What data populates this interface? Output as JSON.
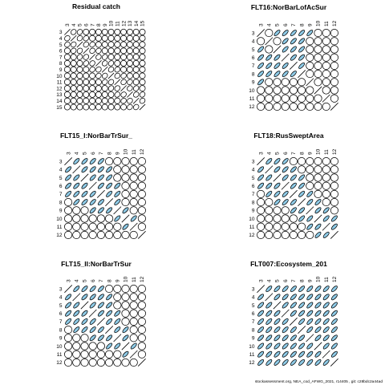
{
  "footer_text": "stockassessment.org, NEA_cod_AFWG_2021, r14405 , git: c28bdc2a44ad",
  "colors": {
    "positive": "#8ecae6",
    "negative": "#ffffff",
    "stroke": "#000000"
  },
  "chart_data": [
    {
      "type": "ellipse-correlation-matrix",
      "title": "Residual catch",
      "labels": [
        "3",
        "4",
        "5",
        "6",
        "7",
        "8",
        "9",
        "10",
        "11",
        "12",
        "13",
        "14",
        "15"
      ],
      "shaded": []
    },
    {
      "type": "ellipse-correlation-matrix",
      "title": "FLT16:NorBarLofAcSur",
      "labels": [
        "3",
        "4",
        "5",
        "6",
        "7",
        "8",
        "9",
        "10",
        "11",
        "12"
      ],
      "shaded": [
        [
          0,
          2
        ],
        [
          0,
          3
        ],
        [
          0,
          4
        ],
        [
          0,
          5
        ],
        [
          0,
          6
        ],
        [
          1,
          3
        ],
        [
          1,
          4
        ],
        [
          1,
          5
        ],
        [
          2,
          3
        ],
        [
          2,
          4
        ],
        [
          2,
          5
        ],
        [
          3,
          4
        ],
        [
          3,
          5
        ],
        [
          4,
          5
        ]
      ]
    },
    {
      "type": "ellipse-correlation-matrix",
      "title": "FLT15_I:NorBarTrSur_",
      "labels": [
        "3",
        "4",
        "5",
        "6",
        "7",
        "8",
        "9",
        "10",
        "11",
        "12"
      ],
      "shaded": [
        [
          0,
          1
        ],
        [
          0,
          2
        ],
        [
          0,
          3
        ],
        [
          0,
          4
        ],
        [
          1,
          2
        ],
        [
          1,
          3
        ],
        [
          1,
          4
        ],
        [
          1,
          5
        ],
        [
          2,
          3
        ],
        [
          2,
          4
        ],
        [
          2,
          5
        ],
        [
          3,
          4
        ],
        [
          3,
          5
        ],
        [
          3,
          6
        ],
        [
          4,
          5
        ],
        [
          4,
          6
        ],
        [
          5,
          6
        ],
        [
          6,
          7
        ],
        [
          7,
          8
        ]
      ]
    },
    {
      "type": "ellipse-correlation-matrix",
      "title": "FLT18:RusSweptArea",
      "labels": [
        "3",
        "4",
        "5",
        "6",
        "7",
        "8",
        "9",
        "10",
        "11",
        "12"
      ],
      "shaded": [
        [
          0,
          1
        ],
        [
          0,
          2
        ],
        [
          0,
          3
        ],
        [
          1,
          2
        ],
        [
          1,
          3
        ],
        [
          1,
          4
        ],
        [
          2,
          3
        ],
        [
          2,
          4
        ],
        [
          2,
          5
        ],
        [
          3,
          4
        ],
        [
          3,
          5
        ],
        [
          4,
          5
        ],
        [
          4,
          6
        ],
        [
          5,
          6
        ],
        [
          5,
          7
        ],
        [
          6,
          7
        ],
        [
          6,
          8
        ],
        [
          7,
          8
        ],
        [
          7,
          9
        ],
        [
          8,
          9
        ]
      ]
    },
    {
      "type": "ellipse-correlation-matrix",
      "title": "FLT15_II:NorBarTrSur",
      "labels": [
        "3",
        "4",
        "5",
        "6",
        "7",
        "8",
        "9",
        "10",
        "11",
        "12"
      ],
      "shaded": [
        [
          0,
          1
        ],
        [
          0,
          2
        ],
        [
          0,
          3
        ],
        [
          0,
          4
        ],
        [
          1,
          2
        ],
        [
          1,
          3
        ],
        [
          1,
          4
        ],
        [
          1,
          5
        ],
        [
          2,
          3
        ],
        [
          2,
          4
        ],
        [
          2,
          5
        ],
        [
          3,
          4
        ],
        [
          3,
          5
        ],
        [
          3,
          6
        ],
        [
          4,
          5
        ],
        [
          4,
          6
        ],
        [
          5,
          6
        ],
        [
          5,
          7
        ],
        [
          6,
          7
        ],
        [
          7,
          8
        ]
      ]
    },
    {
      "type": "ellipse-correlation-matrix",
      "title": "FLT007:Ecosystem_201",
      "labels": [
        "3",
        "4",
        "5",
        "6",
        "7",
        "8",
        "9",
        "10",
        "11",
        "12"
      ],
      "shaded": [
        [
          0,
          1
        ],
        [
          0,
          2
        ],
        [
          0,
          3
        ],
        [
          0,
          4
        ],
        [
          0,
          5
        ],
        [
          0,
          6
        ],
        [
          0,
          7
        ],
        [
          0,
          8
        ],
        [
          0,
          9
        ],
        [
          1,
          2
        ],
        [
          1,
          3
        ],
        [
          1,
          4
        ],
        [
          1,
          5
        ],
        [
          1,
          6
        ],
        [
          1,
          7
        ],
        [
          1,
          8
        ],
        [
          1,
          9
        ],
        [
          2,
          3
        ],
        [
          2,
          4
        ],
        [
          2,
          5
        ],
        [
          2,
          6
        ],
        [
          2,
          7
        ],
        [
          2,
          8
        ],
        [
          2,
          9
        ],
        [
          3,
          4
        ],
        [
          3,
          5
        ],
        [
          3,
          6
        ],
        [
          3,
          7
        ],
        [
          3,
          8
        ],
        [
          3,
          9
        ],
        [
          4,
          5
        ],
        [
          4,
          6
        ],
        [
          4,
          7
        ],
        [
          4,
          8
        ],
        [
          4,
          9
        ],
        [
          5,
          6
        ],
        [
          5,
          7
        ],
        [
          5,
          8
        ],
        [
          5,
          9
        ],
        [
          6,
          7
        ],
        [
          6,
          8
        ],
        [
          6,
          9
        ],
        [
          7,
          8
        ],
        [
          7,
          9
        ],
        [
          8,
          9
        ]
      ]
    }
  ]
}
